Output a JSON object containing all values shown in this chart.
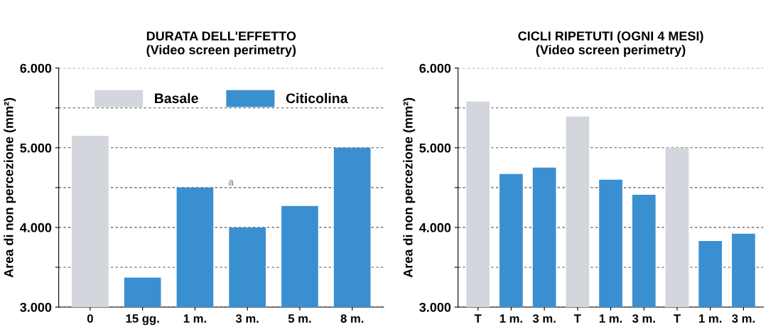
{
  "chart_data": [
    {
      "type": "bar",
      "title": "DURATA DELL'EFFETTO",
      "subtitle": "(Video screen perimetry)",
      "ylabel": "Area di non percezione (mm²)",
      "categories": [
        "0",
        "15 gg.",
        "1 m.",
        "3 m.",
        "5 m.",
        "8 m."
      ],
      "series": [
        {
          "name": "Basale",
          "color": "#d3d7dd",
          "values": [
            5150,
            null,
            null,
            null,
            null,
            null
          ]
        },
        {
          "name": "Citicolina",
          "color": "#3a8fd0",
          "values": [
            null,
            3370,
            4500,
            4000,
            4270,
            5000
          ]
        }
      ],
      "annotations": [
        "a"
      ],
      "ylim": [
        3000,
        6000
      ],
      "yticks": [
        {
          "value": 3000,
          "label": "3.000"
        },
        {
          "value": 3500,
          "label": null
        },
        {
          "value": 4000,
          "label": "4.000"
        },
        {
          "value": 4500,
          "label": null
        },
        {
          "value": 5000,
          "label": "5.000"
        },
        {
          "value": 5500,
          "label": null
        },
        {
          "value": 6000,
          "label": "6.000"
        }
      ],
      "grid": "y",
      "legend": "top"
    },
    {
      "type": "bar",
      "title": "CICLI RIPETUTI (OGNI 4 MESI)",
      "subtitle": "(Video screen perimetry)",
      "ylabel": "Area di non percezione (mm²)",
      "categories": [
        "T",
        "1 m.",
        "3 m.",
        "T",
        "1 m.",
        "3 m.",
        "T",
        "1 m.",
        "3 m."
      ],
      "series": [
        {
          "color": "#d3d7dd",
          "values": [
            5580,
            null,
            null,
            5390,
            null,
            null,
            5000,
            null,
            null
          ]
        },
        {
          "color": "#3a8fd0",
          "values": [
            null,
            4670,
            4750,
            null,
            4600,
            4410,
            null,
            3830,
            3920
          ]
        }
      ],
      "ylim": [
        3000,
        6000
      ],
      "yticks": [
        {
          "value": 3000,
          "label": "3.000"
        },
        {
          "value": 3500,
          "label": null
        },
        {
          "value": 4000,
          "label": "4.000"
        },
        {
          "value": 4500,
          "label": null
        },
        {
          "value": 5000,
          "label": "5.000"
        },
        {
          "value": 5500,
          "label": null
        },
        {
          "value": 6000,
          "label": "6.000"
        }
      ],
      "grid": "y"
    }
  ]
}
